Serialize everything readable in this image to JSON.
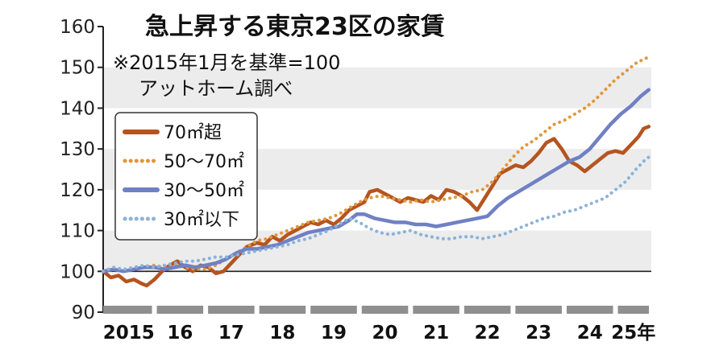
{
  "chart_data": {
    "type": "line",
    "title": "急上昇する東京23区の家賃",
    "subtitle_lines": [
      "※2015年1月を基準=100",
      "アットホーム調べ"
    ],
    "xlabel": "",
    "ylabel": "",
    "ylim": [
      90,
      160
    ],
    "y_ticks": [
      90,
      100,
      110,
      120,
      130,
      140,
      150,
      160
    ],
    "x_range": [
      2015.0,
      2025.7
    ],
    "x_tick_labels": [
      "2015",
      "16",
      "17",
      "18",
      "19",
      "20",
      "21",
      "22",
      "23",
      "24",
      "25年"
    ],
    "x_tick_positions": [
      2015,
      2016,
      2017,
      2018,
      2019,
      2020,
      2021,
      2022,
      2023,
      2024,
      2025
    ],
    "grid": "horizontal bands",
    "baseline": 100,
    "legend_position": "upper-left",
    "series": [
      {
        "name": "70㎡超",
        "color": "#b5541f",
        "style": "solid",
        "points": [
          [
            2015.0,
            100
          ],
          [
            2015.15,
            98.5
          ],
          [
            2015.3,
            99
          ],
          [
            2015.45,
            97.5
          ],
          [
            2015.6,
            98
          ],
          [
            2015.75,
            97
          ],
          [
            2015.85,
            96.5
          ],
          [
            2016.0,
            98
          ],
          [
            2016.15,
            100
          ],
          [
            2016.3,
            101.5
          ],
          [
            2016.45,
            102.5
          ],
          [
            2016.6,
            101
          ],
          [
            2016.75,
            100
          ],
          [
            2016.9,
            101.5
          ],
          [
            2017.05,
            101
          ],
          [
            2017.2,
            99.5
          ],
          [
            2017.35,
            100
          ],
          [
            2017.5,
            102
          ],
          [
            2017.65,
            104
          ],
          [
            2017.8,
            106
          ],
          [
            2018.0,
            107
          ],
          [
            2018.15,
            106.5
          ],
          [
            2018.3,
            108.5
          ],
          [
            2018.45,
            107.5
          ],
          [
            2018.6,
            109
          ],
          [
            2018.75,
            110
          ],
          [
            2018.9,
            111
          ],
          [
            2019.05,
            112
          ],
          [
            2019.2,
            111.5
          ],
          [
            2019.35,
            112.5
          ],
          [
            2019.5,
            111.5
          ],
          [
            2019.65,
            113
          ],
          [
            2019.8,
            115
          ],
          [
            2019.95,
            116
          ],
          [
            2020.1,
            117
          ],
          [
            2020.2,
            119.5
          ],
          [
            2020.35,
            120
          ],
          [
            2020.5,
            119
          ],
          [
            2020.65,
            118
          ],
          [
            2020.8,
            117
          ],
          [
            2020.95,
            118
          ],
          [
            2021.1,
            117.5
          ],
          [
            2021.25,
            117
          ],
          [
            2021.4,
            118.5
          ],
          [
            2021.55,
            117.5
          ],
          [
            2021.7,
            120
          ],
          [
            2021.85,
            119.5
          ],
          [
            2022.0,
            118.5
          ],
          [
            2022.15,
            117
          ],
          [
            2022.3,
            115
          ],
          [
            2022.45,
            118
          ],
          [
            2022.6,
            121
          ],
          [
            2022.75,
            124
          ],
          [
            2022.9,
            125
          ],
          [
            2023.05,
            126
          ],
          [
            2023.2,
            125.5
          ],
          [
            2023.35,
            127
          ],
          [
            2023.5,
            129
          ],
          [
            2023.65,
            131.5
          ],
          [
            2023.8,
            132.5
          ],
          [
            2023.95,
            130
          ],
          [
            2024.1,
            127
          ],
          [
            2024.25,
            126
          ],
          [
            2024.4,
            124.5
          ],
          [
            2024.55,
            126
          ],
          [
            2024.7,
            127.5
          ],
          [
            2024.85,
            129
          ],
          [
            2025.0,
            129.5
          ],
          [
            2025.15,
            129
          ],
          [
            2025.3,
            131
          ],
          [
            2025.45,
            133
          ],
          [
            2025.55,
            135
          ],
          [
            2025.65,
            135.5
          ]
        ]
      },
      {
        "name": "50〜70㎡",
        "color": "#e0973a",
        "style": "dotted",
        "points": [
          [
            2015.0,
            100
          ],
          [
            2015.2,
            100.5
          ],
          [
            2015.4,
            100
          ],
          [
            2015.6,
            100.5
          ],
          [
            2015.8,
            101
          ],
          [
            2016.0,
            101.5
          ],
          [
            2016.2,
            101
          ],
          [
            2016.4,
            101.5
          ],
          [
            2016.6,
            101
          ],
          [
            2016.8,
            100.5
          ],
          [
            2017.0,
            100.5
          ],
          [
            2017.2,
            101.5
          ],
          [
            2017.4,
            103
          ],
          [
            2017.6,
            104.5
          ],
          [
            2017.8,
            106
          ],
          [
            2018.0,
            107.5
          ],
          [
            2018.2,
            108
          ],
          [
            2018.4,
            109
          ],
          [
            2018.6,
            110
          ],
          [
            2018.8,
            111
          ],
          [
            2019.0,
            112
          ],
          [
            2019.2,
            112.5
          ],
          [
            2019.4,
            113
          ],
          [
            2019.6,
            114
          ],
          [
            2019.8,
            115.5
          ],
          [
            2020.0,
            117
          ],
          [
            2020.2,
            118
          ],
          [
            2020.4,
            118.5
          ],
          [
            2020.6,
            118
          ],
          [
            2020.8,
            117.5
          ],
          [
            2021.0,
            117
          ],
          [
            2021.2,
            117.5
          ],
          [
            2021.4,
            117
          ],
          [
            2021.6,
            117.5
          ],
          [
            2021.8,
            118
          ],
          [
            2022.0,
            118.5
          ],
          [
            2022.2,
            119.5
          ],
          [
            2022.4,
            120
          ],
          [
            2022.6,
            122
          ],
          [
            2022.8,
            125
          ],
          [
            2023.0,
            128
          ],
          [
            2023.2,
            130.5
          ],
          [
            2023.4,
            132
          ],
          [
            2023.6,
            134
          ],
          [
            2023.8,
            136
          ],
          [
            2024.0,
            137
          ],
          [
            2024.2,
            138.5
          ],
          [
            2024.4,
            140
          ],
          [
            2024.6,
            142
          ],
          [
            2024.8,
            144.5
          ],
          [
            2025.0,
            147
          ],
          [
            2025.2,
            149
          ],
          [
            2025.4,
            151
          ],
          [
            2025.55,
            152
          ],
          [
            2025.65,
            152.5
          ]
        ]
      },
      {
        "name": "30〜50㎡",
        "color": "#7080c4",
        "style": "solid",
        "points": [
          [
            2015.0,
            100
          ],
          [
            2015.2,
            100.5
          ],
          [
            2015.4,
            100
          ],
          [
            2015.6,
            100.5
          ],
          [
            2015.8,
            101
          ],
          [
            2016.0,
            101
          ],
          [
            2016.2,
            100.5
          ],
          [
            2016.4,
            101
          ],
          [
            2016.6,
            101.5
          ],
          [
            2016.8,
            101
          ],
          [
            2017.0,
            101.5
          ],
          [
            2017.2,
            102
          ],
          [
            2017.4,
            103
          ],
          [
            2017.6,
            104.5
          ],
          [
            2017.8,
            105.5
          ],
          [
            2018.0,
            105.5
          ],
          [
            2018.2,
            106
          ],
          [
            2018.4,
            106.5
          ],
          [
            2018.6,
            107.5
          ],
          [
            2018.8,
            108.5
          ],
          [
            2019.0,
            109.5
          ],
          [
            2019.2,
            110
          ],
          [
            2019.4,
            110.5
          ],
          [
            2019.6,
            111
          ],
          [
            2019.8,
            112.5
          ],
          [
            2019.95,
            114
          ],
          [
            2020.1,
            114
          ],
          [
            2020.3,
            113
          ],
          [
            2020.5,
            112.5
          ],
          [
            2020.7,
            112
          ],
          [
            2020.9,
            112
          ],
          [
            2021.1,
            111.5
          ],
          [
            2021.3,
            111.5
          ],
          [
            2021.5,
            111
          ],
          [
            2021.7,
            111.5
          ],
          [
            2021.9,
            112
          ],
          [
            2022.1,
            112.5
          ],
          [
            2022.3,
            113
          ],
          [
            2022.5,
            113.5
          ],
          [
            2022.7,
            116
          ],
          [
            2022.9,
            118
          ],
          [
            2023.1,
            119.5
          ],
          [
            2023.3,
            121
          ],
          [
            2023.5,
            122.5
          ],
          [
            2023.7,
            124
          ],
          [
            2023.9,
            125.5
          ],
          [
            2024.1,
            127
          ],
          [
            2024.3,
            128
          ],
          [
            2024.5,
            130
          ],
          [
            2024.7,
            133
          ],
          [
            2024.9,
            136
          ],
          [
            2025.1,
            138.5
          ],
          [
            2025.3,
            140.5
          ],
          [
            2025.5,
            143
          ],
          [
            2025.65,
            144.5
          ]
        ]
      },
      {
        "name": "30㎡以下",
        "color": "#8ab2d8",
        "style": "dotted",
        "points": [
          [
            2015.0,
            100
          ],
          [
            2015.2,
            101
          ],
          [
            2015.4,
            100.5
          ],
          [
            2015.6,
            101
          ],
          [
            2015.8,
            101.5
          ],
          [
            2016.0,
            101
          ],
          [
            2016.2,
            101.5
          ],
          [
            2016.4,
            102
          ],
          [
            2016.6,
            102.5
          ],
          [
            2016.8,
            102.5
          ],
          [
            2017.0,
            103
          ],
          [
            2017.2,
            103.5
          ],
          [
            2017.4,
            103.5
          ],
          [
            2017.6,
            104
          ],
          [
            2017.8,
            104.5
          ],
          [
            2018.0,
            105
          ],
          [
            2018.2,
            105.5
          ],
          [
            2018.4,
            106
          ],
          [
            2018.6,
            106.5
          ],
          [
            2018.8,
            107.5
          ],
          [
            2019.0,
            108
          ],
          [
            2019.2,
            109
          ],
          [
            2019.4,
            110
          ],
          [
            2019.6,
            111.5
          ],
          [
            2019.8,
            113
          ],
          [
            2020.0,
            112
          ],
          [
            2020.2,
            110.5
          ],
          [
            2020.4,
            109.5
          ],
          [
            2020.6,
            109
          ],
          [
            2020.8,
            109.5
          ],
          [
            2021.0,
            110
          ],
          [
            2021.2,
            109
          ],
          [
            2021.4,
            108.5
          ],
          [
            2021.6,
            108
          ],
          [
            2021.8,
            108
          ],
          [
            2022.0,
            108.5
          ],
          [
            2022.2,
            108.5
          ],
          [
            2022.4,
            108
          ],
          [
            2022.6,
            108.5
          ],
          [
            2022.8,
            109
          ],
          [
            2023.0,
            110
          ],
          [
            2023.2,
            111
          ],
          [
            2023.4,
            112
          ],
          [
            2023.6,
            113
          ],
          [
            2023.8,
            113.5
          ],
          [
            2024.0,
            114.5
          ],
          [
            2024.2,
            115
          ],
          [
            2024.4,
            116
          ],
          [
            2024.6,
            117
          ],
          [
            2024.8,
            118
          ],
          [
            2025.0,
            120
          ],
          [
            2025.2,
            122
          ],
          [
            2025.4,
            125
          ],
          [
            2025.55,
            127
          ],
          [
            2025.65,
            128
          ]
        ]
      }
    ]
  }
}
